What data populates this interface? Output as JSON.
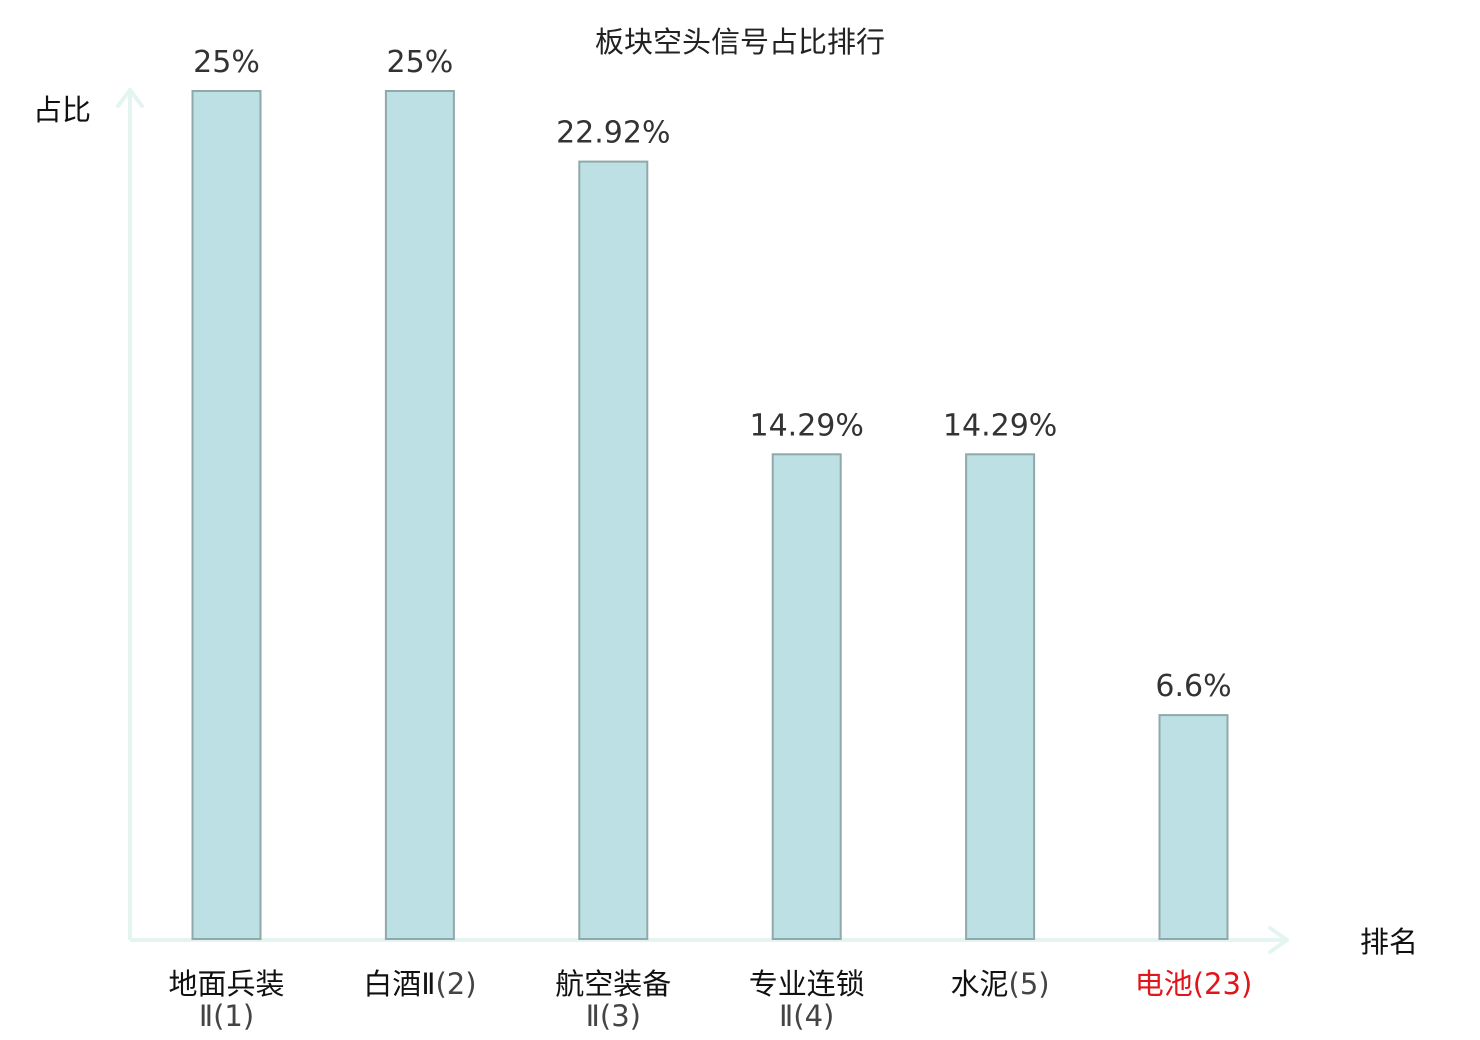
{
  "chart_data": {
    "type": "bar",
    "title": "板块空头信号占比排行",
    "ylabel": "占比",
    "xlabel": "排名",
    "categories": [
      {
        "name": "地面兵装Ⅱ",
        "rank": "(1)",
        "highlight": false
      },
      {
        "name": "白酒Ⅱ",
        "rank": "(2)",
        "highlight": false
      },
      {
        "name": "航空装备Ⅱ",
        "rank": "(3)",
        "highlight": false
      },
      {
        "name": "专业连锁Ⅱ",
        "rank": "(4)",
        "highlight": false
      },
      {
        "name": "水泥",
        "rank": "(5)",
        "highlight": false
      },
      {
        "name": "电池",
        "rank": "(23)",
        "highlight": true
      }
    ],
    "values": [
      25,
      25,
      22.92,
      14.29,
      14.29,
      6.6
    ],
    "value_labels": [
      "25%",
      "25%",
      "22.92%",
      "14.29%",
      "14.29%",
      "6.6%"
    ],
    "ylim": [
      0,
      25
    ],
    "grid": false,
    "legend": "none",
    "colors": {
      "bar_fill": "#bce0e3",
      "bar_stroke": "#8fa9ab",
      "axis": "#e3f4f1",
      "highlight": "#e0161b"
    }
  }
}
